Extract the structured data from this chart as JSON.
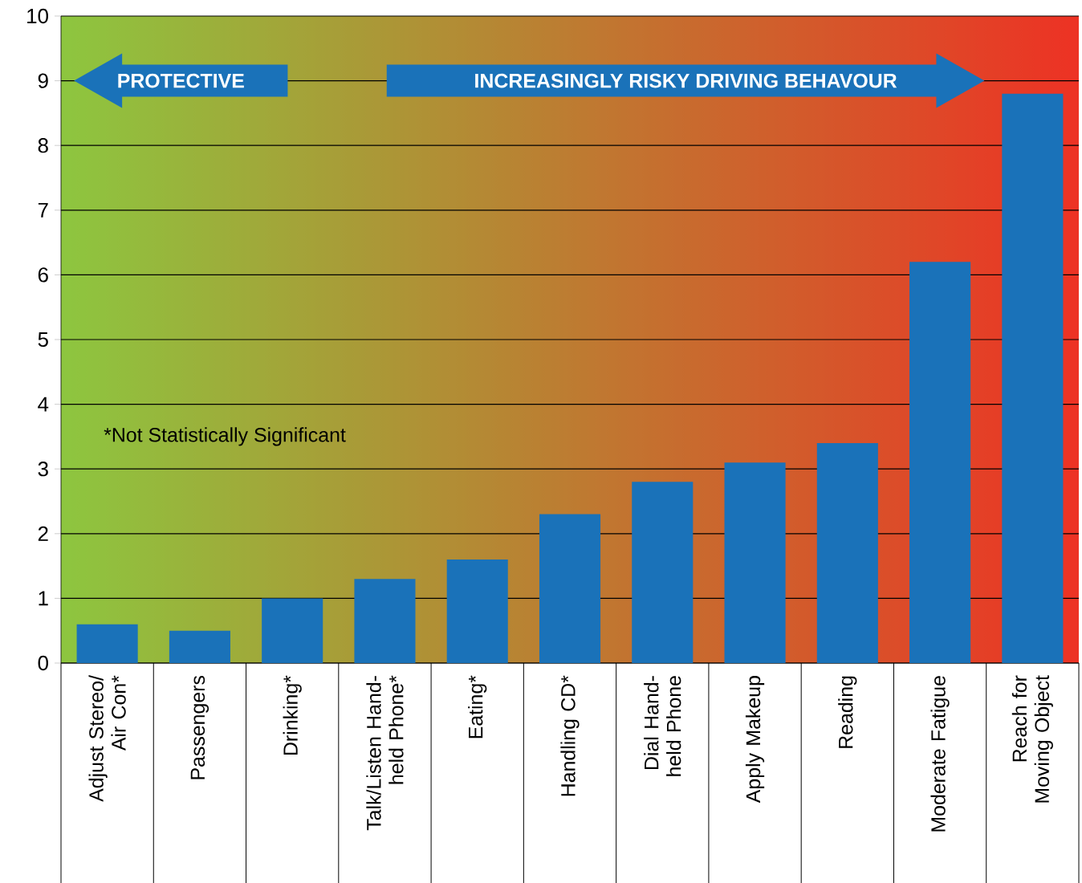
{
  "chart_data": {
    "type": "bar",
    "categories": [
      "Adjust Stereo/ Air Con*",
      "Passengers",
      "Drinking*",
      "Talk/Listen Hand-held Phone*",
      "Eating*",
      "Handling CD*",
      "Dial Hand-held Phone",
      "Apply Makeup",
      "Reading",
      "Moderate Fatigue",
      "Reach for Moving Object"
    ],
    "values": [
      0.6,
      0.5,
      1.0,
      1.3,
      1.6,
      2.3,
      2.8,
      3.1,
      3.4,
      6.2,
      8.8
    ],
    "color": "#1a72b9",
    "ylim": [
      0,
      10
    ],
    "yticks": [
      0,
      1,
      2,
      3,
      4,
      5,
      6,
      7,
      8,
      9,
      10
    ],
    "grid": "y",
    "annotations": [
      "PROTECTIVE",
      "INCREASINGLY RISKY DRIVING BEHAVOUR",
      "*Not Statistically Significant"
    ]
  }
}
